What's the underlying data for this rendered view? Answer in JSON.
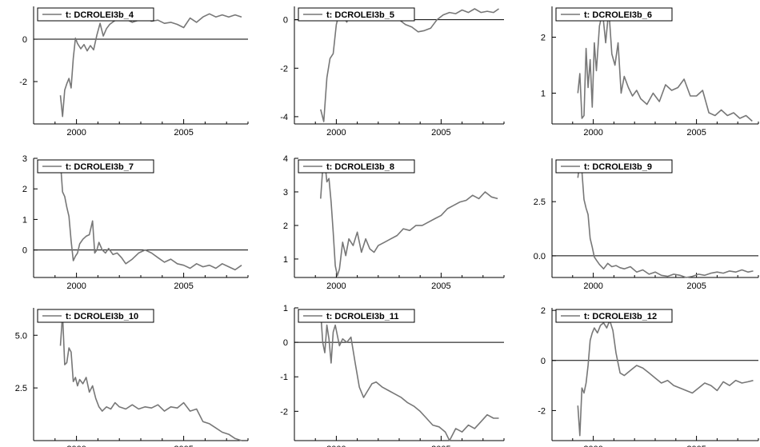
{
  "chart_data": [
    {
      "type": "line",
      "x_ticks": [
        2000,
        2005
      ],
      "xlim": [
        1998.0,
        2008.0
      ],
      "ylim": [
        -4.0,
        1.55
      ],
      "y_ticks": [
        {
          "v": 0,
          "label": "0"
        },
        {
          "v": -2,
          "label": "-2"
        }
      ],
      "zero_line": true,
      "legend": "t: DCROLEI3b_4",
      "series": [
        {
          "name": "t: DCROLEI3b_4",
          "x": [
            1999.25,
            1999.35,
            1999.45,
            1999.55,
            1999.65,
            1999.75,
            1999.85,
            1999.95,
            2000.05,
            2000.2,
            2000.35,
            2000.5,
            2000.65,
            2000.8,
            2000.95,
            2001.1,
            2001.25,
            2001.4,
            2001.55,
            2001.75,
            2002.0,
            2002.3,
            2002.6,
            2002.9,
            2003.2,
            2003.5,
            2003.8,
            2004.1,
            2004.4,
            2004.7,
            2005.0,
            2005.3,
            2005.6,
            2005.9,
            2006.2,
            2006.5,
            2006.8,
            2007.1,
            2007.4,
            2007.7
          ],
          "y": [
            -2.65,
            -3.65,
            -2.4,
            -2.1,
            -1.85,
            -2.3,
            -0.9,
            0.05,
            -0.2,
            -0.45,
            -0.25,
            -0.55,
            -0.3,
            -0.5,
            0.2,
            0.75,
            0.15,
            0.5,
            0.7,
            0.85,
            1.0,
            0.95,
            0.8,
            0.9,
            1.0,
            0.85,
            0.9,
            0.75,
            0.8,
            0.7,
            0.55,
            1.0,
            0.8,
            1.05,
            1.2,
            1.05,
            1.15,
            1.05,
            1.15,
            1.05
          ]
        }
      ]
    },
    {
      "type": "line",
      "x_ticks": [
        2000,
        2005
      ],
      "xlim": [
        1998.0,
        2008.0
      ],
      "ylim": [
        -4.3,
        0.55
      ],
      "y_ticks": [
        {
          "v": 0,
          "label": "0"
        },
        {
          "v": -2,
          "label": "-2"
        },
        {
          "v": -4,
          "label": "-4"
        }
      ],
      "zero_line": true,
      "legend": "t: DCROLEI3b_5",
      "series": [
        {
          "name": "t: DCROLEI3b_5",
          "x": [
            1999.25,
            1999.4,
            1999.55,
            1999.7,
            1999.85,
            2000.0,
            2000.15,
            2000.3,
            2000.5,
            2000.7,
            2000.9,
            2001.1,
            2001.3,
            2001.5,
            2001.8,
            2002.1,
            2002.4,
            2002.7,
            2003.0,
            2003.3,
            2003.6,
            2003.9,
            2004.2,
            2004.5,
            2004.8,
            2005.1,
            2005.4,
            2005.7,
            2006.0,
            2006.3,
            2006.6,
            2006.9,
            2007.2,
            2007.5,
            2007.75
          ],
          "y": [
            -3.7,
            -4.2,
            -2.4,
            -1.6,
            -1.4,
            -0.2,
            0.3,
            0.2,
            -0.1,
            0.4,
            0.1,
            0.0,
            0.2,
            0.1,
            0.2,
            0.15,
            0.0,
            0.1,
            0.0,
            -0.2,
            -0.3,
            -0.5,
            -0.45,
            -0.35,
            0.0,
            0.2,
            0.3,
            0.25,
            0.4,
            0.3,
            0.45,
            0.3,
            0.35,
            0.3,
            0.45
          ]
        }
      ]
    },
    {
      "type": "line",
      "x_ticks": [
        2000,
        2005
      ],
      "xlim": [
        1998.0,
        2008.0
      ],
      "ylim": [
        0.45,
        2.55
      ],
      "y_ticks": [
        {
          "v": 2,
          "label": "2"
        },
        {
          "v": 1,
          "label": "1"
        }
      ],
      "zero_line": false,
      "legend": "t: DCROLEI3b_6",
      "series": [
        {
          "name": "t: DCROLEI3b_6",
          "x": [
            1999.25,
            1999.35,
            1999.45,
            1999.55,
            1999.65,
            1999.75,
            1999.85,
            1999.95,
            2000.05,
            2000.15,
            2000.3,
            2000.45,
            2000.6,
            2000.75,
            2000.9,
            2001.05,
            2001.2,
            2001.35,
            2001.5,
            2001.7,
            2001.9,
            2002.1,
            2002.3,
            2002.6,
            2002.9,
            2003.2,
            2003.5,
            2003.8,
            2004.1,
            2004.4,
            2004.7,
            2005.0,
            2005.3,
            2005.6,
            2005.9,
            2006.2,
            2006.5,
            2006.8,
            2007.1,
            2007.4,
            2007.7
          ],
          "y": [
            1.0,
            1.35,
            0.55,
            0.6,
            1.8,
            1.1,
            1.6,
            0.75,
            1.9,
            1.4,
            2.2,
            2.45,
            1.9,
            2.5,
            1.7,
            1.5,
            1.9,
            1.0,
            1.3,
            1.1,
            0.95,
            1.05,
            0.9,
            0.8,
            1.0,
            0.85,
            1.15,
            1.05,
            1.1,
            1.25,
            0.95,
            0.95,
            1.05,
            0.65,
            0.6,
            0.7,
            0.6,
            0.65,
            0.55,
            0.6,
            0.5
          ]
        }
      ]
    },
    {
      "type": "line",
      "x_ticks": [
        2000,
        2005
      ],
      "xlim": [
        1998.0,
        2008.0
      ],
      "ylim": [
        -0.9,
        3.0
      ],
      "y_ticks": [
        {
          "v": 3,
          "label": "3"
        },
        {
          "v": 2,
          "label": "2"
        },
        {
          "v": 1,
          "label": "1"
        },
        {
          "v": 0,
          "label": "0"
        }
      ],
      "zero_line": true,
      "legend": "t: DCROLEI3b_7",
      "series": [
        {
          "name": "t: DCROLEI3b_7",
          "x": [
            1999.25,
            1999.35,
            1999.45,
            1999.55,
            1999.65,
            1999.75,
            1999.85,
            1999.95,
            2000.05,
            2000.15,
            2000.3,
            2000.45,
            2000.6,
            2000.75,
            2000.85,
            2000.95,
            2001.05,
            2001.2,
            2001.35,
            2001.5,
            2001.7,
            2001.9,
            2002.1,
            2002.3,
            2002.6,
            2002.9,
            2003.2,
            2003.5,
            2003.8,
            2004.1,
            2004.4,
            2004.7,
            2005.0,
            2005.3,
            2005.6,
            2005.9,
            2006.2,
            2006.5,
            2006.8,
            2007.1,
            2007.4,
            2007.7
          ],
          "y": [
            2.9,
            1.9,
            1.75,
            1.4,
            1.1,
            0.3,
            -0.35,
            -0.2,
            -0.1,
            0.2,
            0.35,
            0.45,
            0.5,
            0.95,
            -0.1,
            0.0,
            0.25,
            0.0,
            -0.1,
            0.05,
            -0.15,
            -0.1,
            -0.25,
            -0.45,
            -0.3,
            -0.1,
            0.0,
            -0.1,
            -0.25,
            -0.4,
            -0.3,
            -0.45,
            -0.5,
            -0.6,
            -0.45,
            -0.55,
            -0.5,
            -0.6,
            -0.45,
            -0.55,
            -0.65,
            -0.5
          ]
        }
      ]
    },
    {
      "type": "line",
      "x_ticks": [
        2000,
        2005
      ],
      "xlim": [
        1998.0,
        2008.0
      ],
      "ylim": [
        0.45,
        4.0
      ],
      "y_ticks": [
        {
          "v": 4,
          "label": "4"
        },
        {
          "v": 3,
          "label": "3"
        },
        {
          "v": 2,
          "label": "2"
        },
        {
          "v": 1,
          "label": "1"
        }
      ],
      "zero_line": false,
      "legend": "t: DCROLEI3b_8",
      "series": [
        {
          "name": "t: DCROLEI3b_8",
          "x": [
            1999.25,
            1999.35,
            1999.45,
            1999.55,
            1999.65,
            1999.75,
            1999.85,
            1999.95,
            2000.05,
            2000.15,
            2000.3,
            2000.45,
            2000.6,
            2000.8,
            2001.0,
            2001.2,
            2001.4,
            2001.6,
            2001.8,
            2002.0,
            2002.3,
            2002.6,
            2002.9,
            2003.2,
            2003.5,
            2003.8,
            2004.1,
            2004.4,
            2004.7,
            2005.0,
            2005.3,
            2005.6,
            2005.9,
            2006.2,
            2006.5,
            2006.8,
            2007.1,
            2007.4,
            2007.7
          ],
          "y": [
            2.8,
            3.7,
            3.9,
            3.3,
            3.4,
            2.7,
            1.8,
            0.8,
            0.5,
            0.7,
            1.5,
            1.1,
            1.6,
            1.4,
            1.8,
            1.2,
            1.6,
            1.3,
            1.2,
            1.4,
            1.5,
            1.6,
            1.7,
            1.9,
            1.85,
            2.0,
            2.0,
            2.1,
            2.2,
            2.3,
            2.5,
            2.6,
            2.7,
            2.75,
            2.9,
            2.8,
            3.0,
            2.85,
            2.8
          ]
        }
      ]
    },
    {
      "type": "line",
      "x_ticks": [
        2000,
        2005
      ],
      "xlim": [
        1998.0,
        2008.0
      ],
      "ylim": [
        -1.0,
        4.5
      ],
      "y_ticks": [
        {
          "v": 2.5,
          "label": "2.5"
        },
        {
          "v": 0,
          "label": "0.0"
        }
      ],
      "zero_line": true,
      "legend": "t: DCROLEI3b_9",
      "series": [
        {
          "name": "t: DCROLEI3b_9",
          "x": [
            1999.25,
            1999.35,
            1999.45,
            1999.55,
            1999.65,
            1999.75,
            1999.85,
            1999.95,
            2000.05,
            2000.15,
            2000.3,
            2000.5,
            2000.7,
            2000.9,
            2001.1,
            2001.3,
            2001.5,
            2001.8,
            2002.1,
            2002.4,
            2002.7,
            2003.0,
            2003.3,
            2003.6,
            2003.9,
            2004.2,
            2004.5,
            2004.8,
            2005.1,
            2005.4,
            2005.7,
            2006.0,
            2006.3,
            2006.6,
            2006.9,
            2007.2,
            2007.5,
            2007.75
          ],
          "y": [
            3.6,
            4.3,
            3.9,
            2.6,
            2.2,
            1.9,
            0.8,
            0.4,
            -0.05,
            -0.2,
            -0.4,
            -0.6,
            -0.35,
            -0.5,
            -0.45,
            -0.55,
            -0.6,
            -0.5,
            -0.75,
            -0.65,
            -0.85,
            -0.75,
            -0.9,
            -0.95,
            -0.85,
            -0.9,
            -1.0,
            -0.95,
            -0.85,
            -0.9,
            -0.8,
            -0.75,
            -0.8,
            -0.7,
            -0.75,
            -0.65,
            -0.75,
            -0.7
          ]
        }
      ]
    },
    {
      "type": "line",
      "x_ticks": [
        2000,
        2005
      ],
      "xlim": [
        1998.0,
        2008.0
      ],
      "ylim": [
        0.0,
        6.3
      ],
      "y_ticks": [
        {
          "v": 5,
          "label": "5.0"
        },
        {
          "v": 2.5,
          "label": "2.5"
        }
      ],
      "zero_line": false,
      "legend": "t: DCROLEI3b_10",
      "series": [
        {
          "name": "t: DCROLEI3b_10",
          "x": [
            1999.25,
            1999.35,
            1999.45,
            1999.55,
            1999.65,
            1999.75,
            1999.85,
            1999.95,
            2000.05,
            2000.15,
            2000.3,
            2000.45,
            2000.6,
            2000.75,
            2000.9,
            2001.05,
            2001.2,
            2001.4,
            2001.6,
            2001.8,
            2002.0,
            2002.3,
            2002.6,
            2002.9,
            2003.2,
            2003.5,
            2003.8,
            2004.1,
            2004.4,
            2004.7,
            2005.0,
            2005.3,
            2005.6,
            2005.9,
            2006.2,
            2006.5,
            2006.8,
            2007.1,
            2007.4,
            2007.7
          ],
          "y": [
            4.5,
            6.0,
            3.6,
            3.7,
            4.4,
            4.2,
            2.8,
            3.0,
            2.6,
            2.9,
            2.7,
            3.0,
            2.3,
            2.6,
            2.0,
            1.6,
            1.4,
            1.6,
            1.5,
            1.8,
            1.6,
            1.5,
            1.7,
            1.5,
            1.6,
            1.55,
            1.7,
            1.4,
            1.6,
            1.55,
            1.8,
            1.4,
            1.5,
            0.9,
            0.8,
            0.6,
            0.4,
            0.3,
            0.1,
            0.0
          ]
        }
      ]
    },
    {
      "type": "line",
      "x_ticks": [
        2000,
        2005
      ],
      "xlim": [
        1998.0,
        2008.0
      ],
      "ylim": [
        -2.85,
        1.0
      ],
      "y_ticks": [
        {
          "v": 1,
          "label": "1"
        },
        {
          "v": 0,
          "label": "0"
        },
        {
          "v": -1,
          "label": "-1"
        },
        {
          "v": -2,
          "label": "-2"
        }
      ],
      "zero_line": true,
      "legend": "t: DCROLEI3b_11",
      "series": [
        {
          "name": "t: DCROLEI3b_11",
          "x": [
            1999.25,
            1999.35,
            1999.45,
            1999.55,
            1999.65,
            1999.75,
            1999.85,
            1999.95,
            2000.05,
            2000.15,
            2000.3,
            2000.5,
            2000.7,
            2000.9,
            2001.1,
            2001.3,
            2001.5,
            2001.7,
            2001.9,
            2002.2,
            2002.5,
            2002.8,
            2003.1,
            2003.4,
            2003.7,
            2004.0,
            2004.3,
            2004.6,
            2004.9,
            2005.2,
            2005.4,
            2005.7,
            2006.0,
            2006.3,
            2006.6,
            2006.9,
            2007.2,
            2007.5,
            2007.75
          ],
          "y": [
            0.9,
            0.0,
            -0.3,
            0.5,
            0.1,
            -0.6,
            0.3,
            0.5,
            0.2,
            -0.1,
            0.1,
            0.0,
            0.15,
            -0.6,
            -1.3,
            -1.6,
            -1.4,
            -1.2,
            -1.15,
            -1.3,
            -1.4,
            -1.5,
            -1.6,
            -1.75,
            -1.85,
            -2.0,
            -2.2,
            -2.4,
            -2.45,
            -2.6,
            -2.85,
            -2.5,
            -2.6,
            -2.4,
            -2.5,
            -2.3,
            -2.1,
            -2.2,
            -2.2
          ]
        }
      ]
    },
    {
      "type": "line",
      "x_ticks": [
        2000,
        2005
      ],
      "xlim": [
        1998.0,
        2008.0
      ],
      "ylim": [
        -3.2,
        2.1
      ],
      "y_ticks": [
        {
          "v": 2,
          "label": "2"
        },
        {
          "v": 0,
          "label": "0"
        },
        {
          "v": -2,
          "label": "-2"
        }
      ],
      "zero_line": true,
      "legend": "t: DCROLEI3b_12",
      "series": [
        {
          "name": "t: DCROLEI3b_12",
          "x": [
            1999.25,
            1999.35,
            1999.45,
            1999.55,
            1999.65,
            1999.75,
            1999.85,
            1999.95,
            2000.05,
            2000.2,
            2000.35,
            2000.5,
            2000.65,
            2000.8,
            2000.95,
            2001.1,
            2001.3,
            2001.5,
            2001.8,
            2002.1,
            2002.4,
            2002.7,
            2003.0,
            2003.3,
            2003.6,
            2003.9,
            2004.2,
            2004.5,
            2004.8,
            2005.1,
            2005.4,
            2005.7,
            2006.0,
            2006.3,
            2006.6,
            2006.9,
            2007.2,
            2007.5,
            2007.75
          ],
          "y": [
            -1.8,
            -3.0,
            -1.1,
            -1.3,
            -0.9,
            -0.2,
            0.8,
            1.1,
            1.3,
            1.1,
            1.4,
            1.5,
            1.3,
            1.6,
            1.2,
            0.3,
            -0.5,
            -0.6,
            -0.4,
            -0.2,
            -0.3,
            -0.5,
            -0.7,
            -0.9,
            -0.8,
            -1.0,
            -1.1,
            -1.2,
            -1.3,
            -1.1,
            -0.9,
            -1.0,
            -1.2,
            -0.85,
            -1.0,
            -0.8,
            -0.9,
            -0.85,
            -0.8
          ]
        }
      ]
    }
  ]
}
